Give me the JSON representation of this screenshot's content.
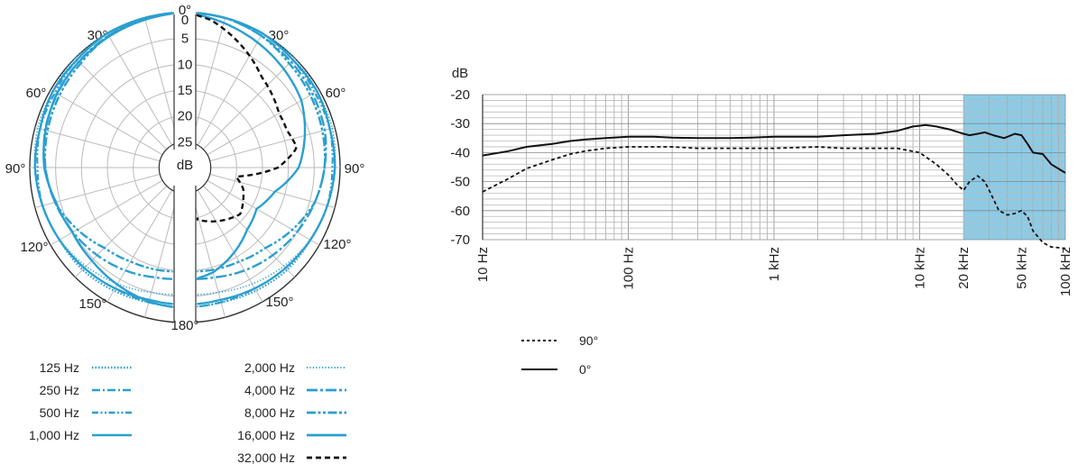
{
  "chart_data": [
    {
      "type": "polar",
      "radial_label": "dB",
      "radial_ticks": [
        "0",
        "5",
        "10",
        "15",
        "20",
        "25"
      ],
      "angle_labels": [
        "0°",
        "30°",
        "60°",
        "90°",
        "120°",
        "150°",
        "180°",
        "30°",
        "60°",
        "90°",
        "120°",
        "150°"
      ],
      "series": [
        {
          "name": "125 Hz",
          "style": "dotted",
          "color": "#2a9fd0",
          "angles": [
            0,
            15,
            30,
            45,
            60,
            75,
            90,
            105,
            120,
            135,
            150,
            165,
            180
          ],
          "db": [
            0,
            0,
            0,
            -0.5,
            -0.5,
            -1,
            -1,
            -1.5,
            -2,
            -2,
            -2.5,
            -3,
            -3
          ]
        },
        {
          "name": "250 Hz",
          "style": "dashdot",
          "color": "#2a9fd0",
          "angles": [
            0,
            15,
            30,
            45,
            60,
            75,
            90,
            105,
            120,
            135,
            150,
            165,
            180
          ],
          "db": [
            0,
            0,
            0,
            -0.5,
            -0.5,
            -1,
            -1,
            -1.5,
            -2,
            -2.5,
            -3,
            -3,
            -3
          ]
        },
        {
          "name": "500 Hz",
          "style": "dashdotdot",
          "color": "#2a9fd0",
          "angles": [
            0,
            15,
            30,
            45,
            60,
            75,
            90,
            105,
            120,
            135,
            150,
            165,
            180
          ],
          "db": [
            0,
            0,
            0,
            -0.5,
            -1,
            -1,
            -1.5,
            -1.5,
            -2,
            -2.5,
            -3,
            -3.5,
            -3.5
          ]
        },
        {
          "name": "1,000 Hz",
          "style": "solid",
          "color": "#2a9fd0",
          "angles": [
            0,
            15,
            30,
            45,
            60,
            75,
            90,
            105,
            120,
            135,
            150,
            165,
            180
          ],
          "db": [
            0,
            0,
            0,
            -0.5,
            -0.5,
            -1,
            -1,
            -1.5,
            -2,
            -2.5,
            -3,
            -3.5,
            -3.5
          ]
        },
        {
          "name": "2,000 Hz",
          "style": "dotted-fine",
          "color": "#2a9fd0",
          "angles": [
            0,
            15,
            30,
            45,
            60,
            75,
            90,
            105,
            120,
            135,
            150,
            165,
            180
          ],
          "db": [
            0,
            0,
            0,
            0,
            -0.5,
            -0.5,
            -1,
            -1.5,
            -2,
            -3,
            -4,
            -5,
            -5.5
          ]
        },
        {
          "name": "4,000 Hz",
          "style": "longdash-dot",
          "color": "#2a9fd0",
          "angles": [
            0,
            15,
            30,
            45,
            60,
            75,
            90,
            105,
            120,
            135,
            150,
            165,
            180
          ],
          "db": [
            0,
            0,
            -0.5,
            -1,
            -1.5,
            -2,
            -3,
            -4,
            -5,
            -6,
            -7,
            -8,
            -8.5
          ]
        },
        {
          "name": "8,000 Hz",
          "style": "longdash-dotdot",
          "color": "#2a9fd0",
          "angles": [
            0,
            15,
            30,
            45,
            60,
            75,
            90,
            105,
            120,
            135,
            150,
            165,
            180
          ],
          "db": [
            0,
            0,
            -0.5,
            -1.5,
            -2,
            -2.5,
            -3,
            -4,
            -6,
            -8,
            -9,
            -9.5,
            -10
          ]
        },
        {
          "name": "16,000 Hz",
          "style": "solid-thick",
          "color": "#2a9fd0",
          "angles": [
            0,
            15,
            30,
            45,
            60,
            75,
            90,
            105,
            120,
            135,
            150,
            165,
            180
          ],
          "db": [
            0,
            -1,
            -2,
            -3,
            -4,
            -6,
            -8,
            -12,
            -14,
            -13,
            -11,
            -9,
            -8
          ]
        },
        {
          "name": "32,000 Hz",
          "style": "dashed",
          "color": "#111111",
          "angles": [
            0,
            10,
            20,
            30,
            40,
            50,
            60,
            70,
            80,
            90,
            100,
            110,
            120,
            130,
            140,
            150,
            160,
            170,
            180
          ],
          "db": [
            0,
            -1,
            -3,
            -5,
            -7,
            -8,
            -9,
            -9,
            -8,
            -12,
            -20,
            -18,
            -17,
            -16,
            -17,
            -18,
            -19,
            -20,
            -20
          ]
        }
      ]
    },
    {
      "type": "line",
      "ylabel": "dB",
      "ylim": [
        -70,
        -20
      ],
      "y_ticks": [
        -20,
        -30,
        -40,
        -50,
        -60,
        -70
      ],
      "x_scale": "log",
      "xlim": [
        10,
        100000
      ],
      "x_ticks": [
        {
          "value": 10,
          "label": "10 Hz"
        },
        {
          "value": 100,
          "label": "100 Hz"
        },
        {
          "value": 1000,
          "label": "1 kHz"
        },
        {
          "value": 10000,
          "label": "10 kHz"
        },
        {
          "value": 20000,
          "label": "20 kHz"
        },
        {
          "value": 50000,
          "label": "50 kHz"
        },
        {
          "value": 100000,
          "label": "100 kHz"
        }
      ],
      "highlight_band": {
        "from": 20000,
        "to": 100000,
        "color": "#8ccbe6"
      },
      "series": [
        {
          "name": "0°",
          "style": "solid",
          "color": "#111111",
          "x": [
            10,
            15,
            20,
            30,
            40,
            50,
            70,
            100,
            150,
            200,
            300,
            500,
            700,
            1000,
            2000,
            3000,
            5000,
            7000,
            9000,
            11000,
            13000,
            16000,
            20000,
            22000,
            25000,
            28000,
            32000,
            38000,
            45000,
            50000,
            55000,
            60000,
            70000,
            80000,
            100000
          ],
          "y": [
            -41,
            -39.5,
            -38,
            -37,
            -36,
            -35.5,
            -35,
            -34.5,
            -34.5,
            -34.8,
            -35,
            -35,
            -34.8,
            -34.5,
            -34.5,
            -34,
            -33.5,
            -32.5,
            -31,
            -30.5,
            -31,
            -32,
            -33.5,
            -34,
            -33.5,
            -33,
            -34,
            -35,
            -33.5,
            -34,
            -37,
            -40,
            -40.5,
            -44,
            -47
          ]
        },
        {
          "name": "90°",
          "style": "dashed",
          "color": "#111111",
          "x": [
            10,
            15,
            20,
            30,
            40,
            50,
            70,
            100,
            200,
            300,
            500,
            1000,
            2000,
            3000,
            5000,
            7000,
            10000,
            13000,
            16000,
            18000,
            20000,
            22000,
            25000,
            28000,
            30000,
            35000,
            40000,
            45000,
            50000,
            55000,
            60000,
            70000,
            80000,
            100000
          ],
          "y": [
            -53.5,
            -49,
            -45.5,
            -42.5,
            -40.5,
            -39.5,
            -38.5,
            -38,
            -38,
            -38.5,
            -38.5,
            -38.5,
            -38,
            -38.5,
            -38.5,
            -38.5,
            -40,
            -44,
            -48,
            -51,
            -53,
            -50,
            -48,
            -50,
            -53,
            -60,
            -61.5,
            -61,
            -60,
            -62,
            -67,
            -71,
            -72.5,
            -73
          ]
        }
      ]
    }
  ],
  "polar_legend": [
    {
      "label": "125 Hz",
      "style": "dotted"
    },
    {
      "label": "250 Hz",
      "style": "dashdot"
    },
    {
      "label": "500 Hz",
      "style": "dashdotdot"
    },
    {
      "label": "1,000 Hz",
      "style": "solid"
    },
    {
      "label": "2,000 Hz",
      "style": "dotted-fine"
    },
    {
      "label": "4,000 Hz",
      "style": "longdash-dot"
    },
    {
      "label": "8,000 Hz",
      "style": "longdash-dotdot"
    },
    {
      "label": "16,000 Hz",
      "style": "solid-thick"
    },
    {
      "label": "32,000 Hz",
      "style": "dashed"
    }
  ],
  "freq_legend": [
    {
      "label": "90°",
      "style": "dashed"
    },
    {
      "label": "0°",
      "style": "solid"
    }
  ]
}
